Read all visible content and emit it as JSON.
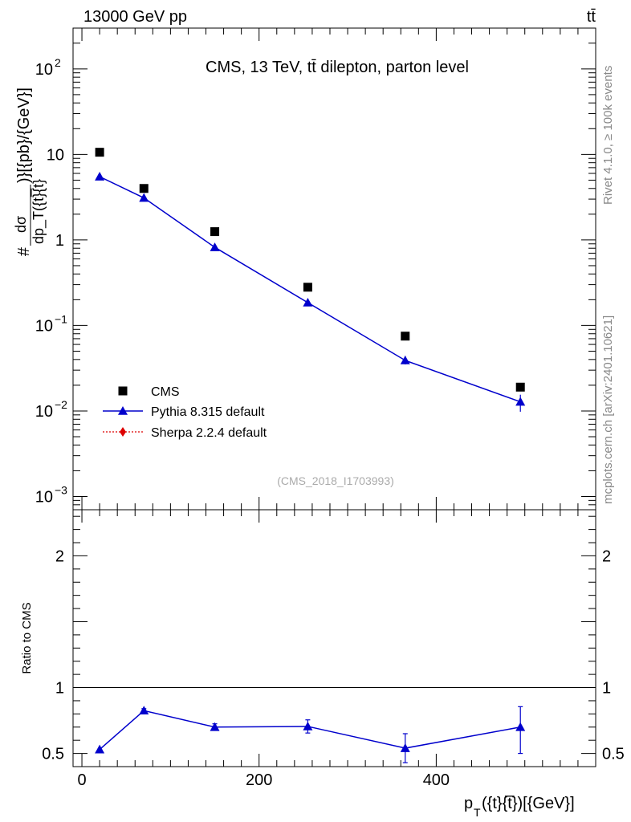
{
  "header": {
    "energy_label": "13000 GeV pp",
    "process_label": "tt̄"
  },
  "side": {
    "rivet_label": "Rivet 4.1.0, ≥ 100k events",
    "mcplots_label": "mcplots.cern.ch [arXiv:2401.10621]"
  },
  "chart_data": {
    "type": "scatter",
    "title": "CMS, 13 TeV, tt̄ dilepton, parton level",
    "analysis_id": "(CMS_2018_I1703993)",
    "ylabel_main_num": "dσ",
    "ylabel_main_den": "dp_T({t}̅{t}",
    "ylabel_main_prefix": "#",
    "ylabel_main_suffix": ")}[{pb}/{GeV}]",
    "ylabel_ratio": "Ratio to CMS",
    "xlabel_main": "p",
    "xlabel_sub": "T",
    "xlabel_rest": "({t}{t̅})[{GeV}]",
    "xlim": [
      -10,
      580
    ],
    "ylim_main": [
      0.0007,
      300
    ],
    "ylim_ratio": [
      0.4,
      2.35
    ],
    "main_yticks": [
      {
        "value": 100,
        "label": "10",
        "exp": "2"
      },
      {
        "value": 10,
        "label": "10",
        "exp": ""
      },
      {
        "value": 1,
        "label": "1",
        "exp": ""
      },
      {
        "value": 0.1,
        "label": "10",
        "exp": "−1"
      },
      {
        "value": 0.01,
        "label": "10",
        "exp": "−2"
      },
      {
        "value": 0.001,
        "label": "10",
        "exp": "−3"
      }
    ],
    "ratio_yticks": [
      {
        "value": 2,
        "label": "2"
      },
      {
        "value": 1,
        "label": "1"
      },
      {
        "value": 0.5,
        "label": "0.5"
      }
    ],
    "xticks": [
      {
        "value": 0,
        "label": "0"
      },
      {
        "value": 200,
        "label": "200"
      },
      {
        "value": 400,
        "label": "400"
      }
    ],
    "legend": [
      {
        "name": "CMS",
        "marker": "square",
        "color": "#000000"
      },
      {
        "name": "Pythia 8.315 default",
        "marker": "triangle",
        "color": "#0000cc"
      },
      {
        "name": "Sherpa 2.2.4 default",
        "marker": "diamond",
        "color": "#dd0000"
      }
    ],
    "series": [
      {
        "name": "CMS",
        "x": [
          20,
          70,
          150,
          255,
          365,
          495
        ],
        "values": [
          10.6,
          4.0,
          1.25,
          0.28,
          0.075,
          0.019
        ]
      },
      {
        "name": "Pythia 8.315 default",
        "x": [
          20,
          70,
          150,
          255,
          365,
          495
        ],
        "values": [
          5.5,
          3.1,
          0.82,
          0.185,
          0.039,
          0.0128
        ],
        "err_lo": [
          5.35,
          3.02,
          0.8,
          0.178,
          0.035,
          0.0098
        ],
        "err_hi": [
          5.65,
          3.18,
          0.84,
          0.192,
          0.044,
          0.0155
        ]
      }
    ],
    "ratio_series": {
      "name": "Pythia 8.315 default",
      "x": [
        20,
        70,
        150,
        255,
        365,
        495
      ],
      "values": [
        0.53,
        0.825,
        0.7,
        0.705,
        0.54,
        0.7
      ],
      "err_lo": [
        0.53,
        0.81,
        0.68,
        0.655,
        0.43,
        0.5
      ],
      "err_hi": [
        0.53,
        0.84,
        0.725,
        0.755,
        0.65,
        0.855
      ]
    }
  }
}
